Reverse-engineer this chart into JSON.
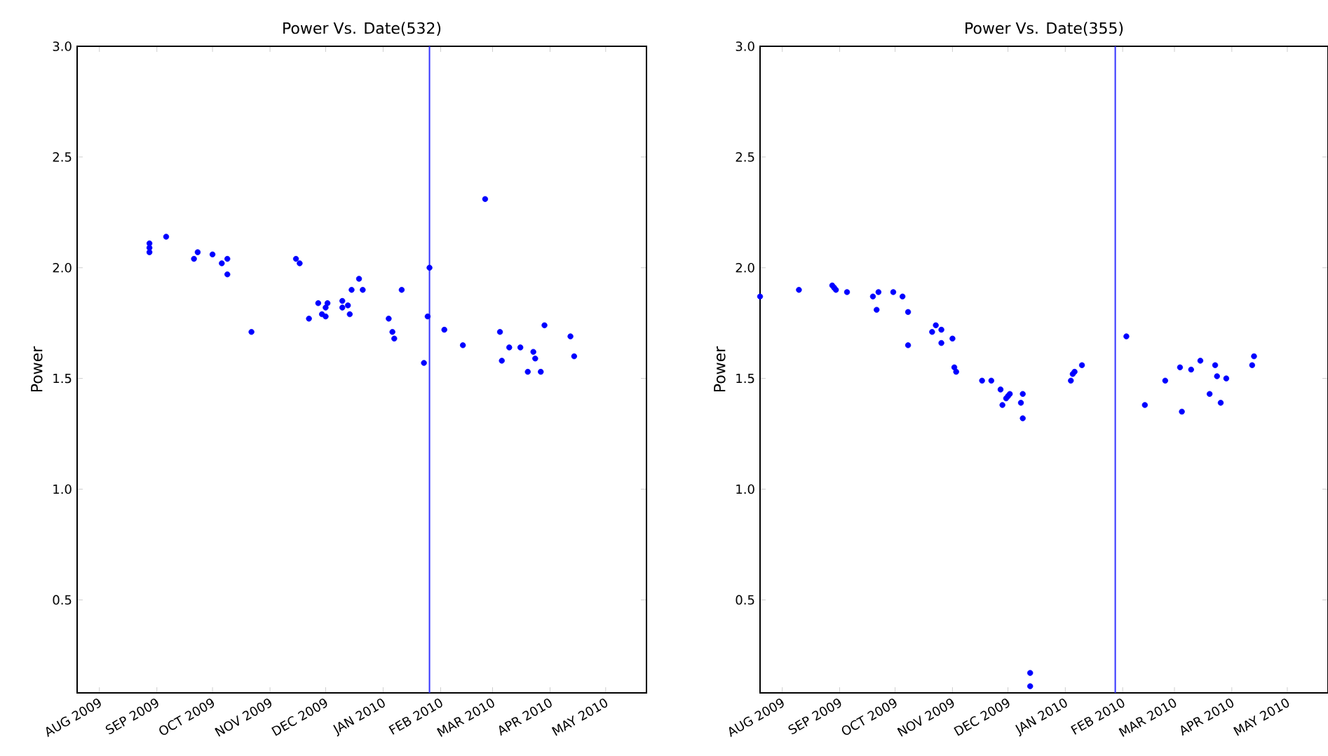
{
  "chart_data": [
    {
      "type": "scatter",
      "title": "Power Vs. Date(532)",
      "ylabel": "Power",
      "color": "#0000ff",
      "marker": "circle",
      "x": [
        "2009-08-28",
        "2009-08-28",
        "2009-08-28",
        "2009-09-06",
        "2009-09-21",
        "2009-09-23",
        "2009-10-01",
        "2009-10-06",
        "2009-10-09",
        "2009-10-09",
        "2009-10-22",
        "2009-11-15",
        "2009-11-17",
        "2009-11-22",
        "2009-11-27",
        "2009-11-29",
        "2009-12-01",
        "2009-12-01",
        "2009-12-02",
        "2009-12-10",
        "2009-12-10",
        "2009-12-13",
        "2009-12-14",
        "2009-12-15",
        "2009-12-19",
        "2009-12-21",
        "2010-01-04",
        "2010-01-06",
        "2010-01-07",
        "2010-01-11",
        "2010-01-23",
        "2010-01-25",
        "2010-01-26",
        "2010-02-03",
        "2010-02-13",
        "2010-02-25",
        "2010-03-05",
        "2010-03-06",
        "2010-03-10",
        "2010-03-16",
        "2010-03-20",
        "2010-03-23",
        "2010-03-24",
        "2010-03-27",
        "2010-03-29",
        "2010-04-12",
        "2010-04-14"
      ],
      "values": [
        2.11,
        2.09,
        2.07,
        2.14,
        2.04,
        2.07,
        2.06,
        2.02,
        2.04,
        1.97,
        1.71,
        2.04,
        2.02,
        1.77,
        1.84,
        1.79,
        1.78,
        1.82,
        1.84,
        1.85,
        1.82,
        1.83,
        1.79,
        1.9,
        1.95,
        1.9,
        1.77,
        1.71,
        1.68,
        1.9,
        1.57,
        1.78,
        2.0,
        1.72,
        1.65,
        2.31,
        1.71,
        1.58,
        1.64,
        1.64,
        1.53,
        1.62,
        1.59,
        1.53,
        1.74,
        1.69,
        1.6
      ],
      "xlim": [
        "2009-07-20",
        "2010-05-23"
      ],
      "ylim": [
        0.08,
        3.0
      ],
      "xticks": [
        {
          "value": "2009-08-01",
          "label": "AUG 2009"
        },
        {
          "value": "2009-09-01",
          "label": "SEP 2009"
        },
        {
          "value": "2009-10-01",
          "label": "OCT 2009"
        },
        {
          "value": "2009-11-01",
          "label": "NOV 2009"
        },
        {
          "value": "2009-12-01",
          "label": "DEC 2009"
        },
        {
          "value": "2010-01-01",
          "label": "JAN 2010"
        },
        {
          "value": "2010-02-01",
          "label": "FEB 2010"
        },
        {
          "value": "2010-03-01",
          "label": "MAR 2010"
        },
        {
          "value": "2010-04-01",
          "label": "APR 2010"
        },
        {
          "value": "2010-05-01",
          "label": "MAY 2010"
        }
      ],
      "yticks": [
        0.5,
        {
          "value": 1,
          "label": "1.0"
        },
        1.5,
        {
          "value": 2,
          "label": "2.0"
        },
        2.5,
        {
          "value": 3,
          "label": "3.0"
        }
      ],
      "ref_lines": [
        {
          "axis": "x",
          "value": "2010-01-26",
          "color": "#3333ff"
        }
      ]
    },
    {
      "type": "scatter",
      "title": "Power Vs. Date(355)",
      "ylabel": "Power",
      "color": "#0000ff",
      "marker": "circle",
      "x": [
        "2009-07-20",
        "2009-08-10",
        "2009-08-28",
        "2009-08-29",
        "2009-08-30",
        "2009-09-05",
        "2009-09-19",
        "2009-09-21",
        "2009-09-22",
        "2009-09-30",
        "2009-10-05",
        "2009-10-08",
        "2009-10-08",
        "2009-10-21",
        "2009-10-23",
        "2009-10-26",
        "2009-10-26",
        "2009-11-01",
        "2009-11-02",
        "2009-11-03",
        "2009-11-17",
        "2009-11-22",
        "2009-11-27",
        "2009-11-28",
        "2009-11-30",
        "2009-12-01",
        "2009-12-02",
        "2009-12-08",
        "2009-12-09",
        "2009-12-09",
        "2009-12-13",
        "2009-12-13",
        "2010-01-04",
        "2010-01-05",
        "2010-01-06",
        "2010-01-10",
        "2010-02-03",
        "2010-02-13",
        "2010-02-24",
        "2010-03-04",
        "2010-03-05",
        "2010-03-10",
        "2010-03-15",
        "2010-03-20",
        "2010-03-23",
        "2010-03-24",
        "2010-03-26",
        "2010-03-29",
        "2010-04-12",
        "2010-04-13"
      ],
      "values": [
        1.87,
        1.9,
        1.92,
        1.91,
        1.9,
        1.89,
        1.87,
        1.81,
        1.89,
        1.89,
        1.87,
        1.8,
        1.65,
        1.71,
        1.74,
        1.72,
        1.66,
        1.68,
        1.55,
        1.53,
        1.49,
        1.49,
        1.45,
        1.38,
        1.41,
        1.42,
        1.43,
        1.39,
        1.43,
        1.32,
        0.17,
        0.11,
        1.49,
        1.52,
        1.53,
        1.56,
        1.69,
        1.38,
        1.49,
        1.55,
        1.35,
        1.54,
        1.58,
        1.43,
        1.56,
        1.51,
        1.39,
        1.5,
        1.56,
        1.6
      ],
      "xlim": [
        "2009-07-20",
        "2010-05-23"
      ],
      "ylim": [
        0.08,
        3.0
      ],
      "xticks": [
        {
          "value": "2009-08-01",
          "label": "AUG 2009"
        },
        {
          "value": "2009-09-01",
          "label": "SEP 2009"
        },
        {
          "value": "2009-10-01",
          "label": "OCT 2009"
        },
        {
          "value": "2009-11-01",
          "label": "NOV 2009"
        },
        {
          "value": "2009-12-01",
          "label": "DEC 2009"
        },
        {
          "value": "2010-01-01",
          "label": "JAN 2010"
        },
        {
          "value": "2010-02-01",
          "label": "FEB 2010"
        },
        {
          "value": "2010-03-01",
          "label": "MAR 2010"
        },
        {
          "value": "2010-04-01",
          "label": "APR 2010"
        },
        {
          "value": "2010-05-01",
          "label": "MAY 2010"
        }
      ],
      "yticks": [
        0.5,
        {
          "value": 1,
          "label": "1.0"
        },
        1.5,
        {
          "value": 2,
          "label": "2.0"
        },
        2.5,
        {
          "value": 3,
          "label": "3.0"
        }
      ],
      "ref_lines": [
        {
          "axis": "x",
          "value": "2010-01-28",
          "color": "#3333ff"
        }
      ]
    }
  ]
}
